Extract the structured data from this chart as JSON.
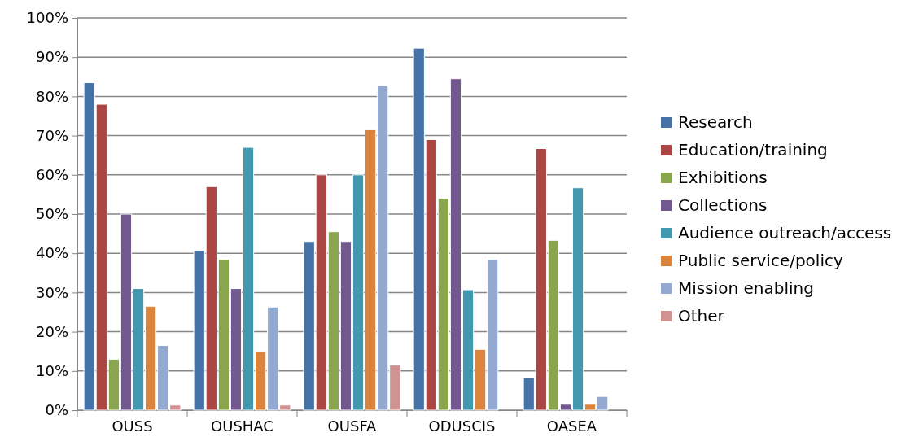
{
  "chart_data": {
    "type": "bar",
    "categories": [
      "OUSS",
      "OUSHAC",
      "OUSFA",
      "ODUSCIS",
      "OASEA"
    ],
    "series": [
      {
        "name": "Research",
        "color": "#4572a7",
        "values": [
          83.5,
          40.7,
          43,
          92.3,
          8.3
        ]
      },
      {
        "name": "Education/training",
        "color": "#aa4643",
        "values": [
          78,
          57,
          60,
          69,
          66.7
        ]
      },
      {
        "name": "Exhibitions",
        "color": "#89a54e",
        "values": [
          13,
          38.5,
          45.5,
          54,
          43.3
        ]
      },
      {
        "name": "Collections",
        "color": "#71588f",
        "values": [
          50,
          31,
          43,
          84.5,
          1.5
        ]
      },
      {
        "name": "Audience outreach/access",
        "color": "#4198af",
        "values": [
          31,
          67,
          60,
          30.7,
          56.7
        ]
      },
      {
        "name": "Public service/policy",
        "color": "#db843d",
        "values": [
          26.5,
          15,
          71.5,
          15.5,
          1.5
        ]
      },
      {
        "name": "Mission enabling",
        "color": "#93a9cf",
        "values": [
          16.5,
          26.3,
          82.7,
          38.5,
          3.5
        ]
      },
      {
        "name": "Other",
        "color": "#d19392",
        "values": [
          1.3,
          1.3,
          11.5,
          null,
          null
        ]
      }
    ],
    "ylim": [
      0,
      100
    ],
    "yticks": [
      {
        "value": 0,
        "label": "0%"
      },
      {
        "value": 10,
        "label": "10%"
      },
      {
        "value": 20,
        "label": "20%"
      },
      {
        "value": 30,
        "label": "30%"
      },
      {
        "value": 40,
        "label": "40%"
      },
      {
        "value": 50,
        "label": "50%"
      },
      {
        "value": 60,
        "label": "60%"
      },
      {
        "value": 70,
        "label": "70%"
      },
      {
        "value": 80,
        "label": "80%"
      },
      {
        "value": 90,
        "label": "90%"
      },
      {
        "value": 100,
        "label": "100%"
      }
    ],
    "grid": "y",
    "legend": "right"
  }
}
